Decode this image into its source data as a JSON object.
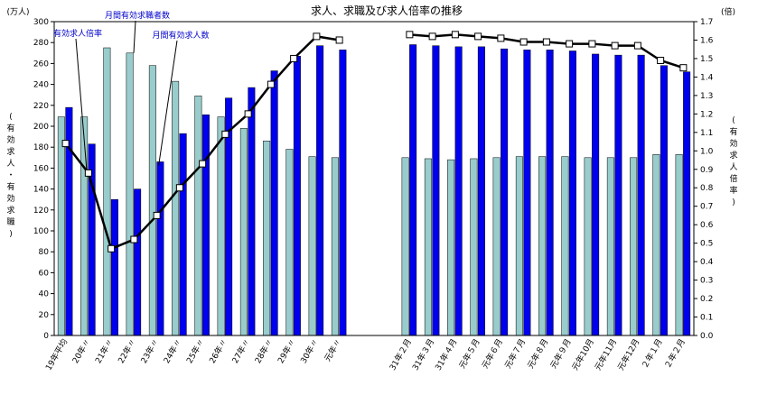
{
  "chart_data": {
    "type": "bar",
    "title": "求人、求職及び求人倍率の推移",
    "y_left_unit": "(万人)",
    "y_right_unit": "(倍)",
    "y_left_label": "(有効求人・有効求職)",
    "y_right_label": "(有効求人倍率)",
    "ylim_left": [
      0,
      300
    ],
    "ylim_right": [
      0.0,
      1.7
    ],
    "y_left_ticks": [
      "0",
      "20",
      "40",
      "60",
      "80",
      "100",
      "120",
      "140",
      "160",
      "180",
      "200",
      "220",
      "240",
      "260",
      "280",
      "300"
    ],
    "y_right_ticks": [
      "0.0",
      "0.1",
      "0.2",
      "0.3",
      "0.4",
      "0.5",
      "0.6",
      "0.7",
      "0.8",
      "0.9",
      "1.0",
      "1.1",
      "1.2",
      "1.3",
      "1.4",
      "1.5",
      "1.6",
      "1.7"
    ],
    "categories": [
      "19年平均",
      "20年〃",
      "21年〃",
      "22年〃",
      "23年〃",
      "24年〃",
      "25年〃",
      "26年〃",
      "27年〃",
      "28年〃",
      "29年〃",
      "30年〃",
      "元年〃",
      "31年２月",
      "31年３月",
      "31年４月",
      "元年５月",
      "元年６月",
      "元年７月",
      "元年８月",
      "元年９月",
      "元年10月",
      "元年11月",
      "元年12月",
      "２年１月",
      "２年２月"
    ],
    "series": [
      {
        "name": "月間有効求職者数",
        "axis": "left",
        "color": "#99cccc",
        "values": [
          209,
          209,
          275,
          270,
          258,
          243,
          229,
          209,
          198,
          186,
          178,
          171,
          170,
          170,
          169,
          168,
          169,
          170,
          171,
          171,
          171,
          170,
          170,
          170,
          173,
          173
        ]
      },
      {
        "name": "月間有効求人数",
        "axis": "left",
        "color": "#0000ee",
        "values": [
          218,
          183,
          130,
          140,
          166,
          193,
          211,
          227,
          237,
          253,
          267,
          277,
          273,
          278,
          277,
          276,
          276,
          274,
          273,
          273,
          272,
          269,
          268,
          268,
          258,
          252
        ]
      },
      {
        "name": "有効求人倍率",
        "axis": "right",
        "type": "line",
        "color": "#000000",
        "values": [
          1.04,
          0.88,
          0.47,
          0.52,
          0.65,
          0.8,
          0.93,
          1.09,
          1.2,
          1.36,
          1.5,
          1.62,
          1.6,
          1.63,
          1.62,
          1.63,
          1.62,
          1.61,
          1.59,
          1.59,
          1.58,
          1.58,
          1.57,
          1.57,
          1.49,
          1.45
        ]
      }
    ],
    "annotations": [
      "月間有効求職者数",
      "有効求人倍率",
      "月間有効求人数"
    ],
    "legend": "none",
    "grid": false
  }
}
